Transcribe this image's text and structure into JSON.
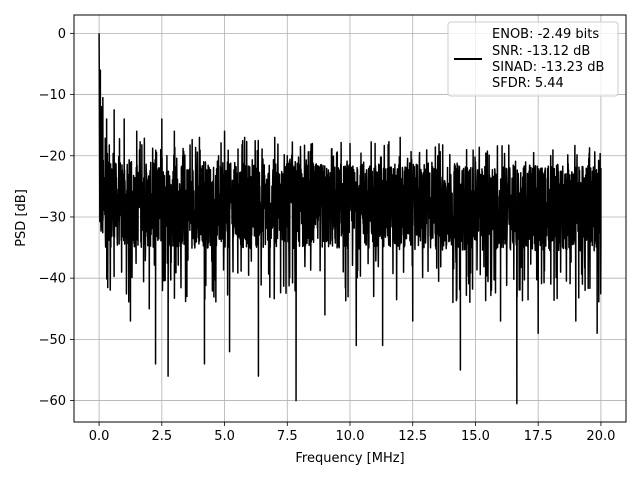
{
  "chart_data": {
    "type": "line",
    "title": "",
    "xlabel": "Frequency [MHz]",
    "ylabel": "PSD [dB]",
    "xlim": [
      -1.0,
      21.0
    ],
    "ylim": [
      -63.5,
      3.0
    ],
    "x_ticks": [
      0.0,
      2.5,
      5.0,
      7.5,
      10.0,
      12.5,
      15.0,
      17.5,
      20.0
    ],
    "x_tick_labels": [
      "0.0",
      "2.5",
      "5.0",
      "7.5",
      "10.0",
      "12.5",
      "15.0",
      "17.5",
      "20.0"
    ],
    "y_ticks": [
      0,
      -10,
      -20,
      -30,
      -40,
      -50,
      -60
    ],
    "y_tick_labels": [
      "0",
      "−10",
      "−20",
      "−30",
      "−40",
      "−50",
      "−60"
    ],
    "grid": true,
    "legend_position": "top-right",
    "legend_lines": [
      "ENOB: -2.49 bits",
      "SNR: -13.12 dB",
      "SINAD: -13.23 dB",
      "SFDR: 5.44"
    ],
    "series": [
      {
        "color": "#000000",
        "noise_floor_db": -29,
        "x": [
          0.0,
          0.05,
          0.1,
          0.15,
          0.2,
          0.3,
          0.45,
          0.6,
          0.8,
          1.0,
          1.25,
          1.5,
          2.0,
          2.25,
          2.5,
          2.75,
          3.0,
          3.5,
          4.0,
          4.2,
          5.0,
          5.2,
          5.8,
          6.35,
          7.0,
          7.5,
          7.85,
          8.5,
          9.0,
          10.0,
          10.25,
          11.0,
          11.3,
          12.0,
          12.5,
          13.5,
          14.4,
          15.0,
          16.0,
          16.65,
          17.0,
          17.5,
          18.0,
          19.0,
          19.85,
          20.0
        ],
        "y": [
          0.0,
          -6.0,
          -12.0,
          -10.5,
          -28.0,
          -14.0,
          -38.5,
          -12.5,
          -32.0,
          -14.0,
          -47.0,
          -16.0,
          -45.0,
          -54.0,
          -14.0,
          -56.0,
          -16.0,
          -43.0,
          -17.0,
          -54.0,
          -16.0,
          -52.0,
          -17.0,
          -56.0,
          -17.0,
          -20.0,
          -60.0,
          -18.0,
          -46.0,
          -18.0,
          -51.0,
          -18.0,
          -51.0,
          -17.0,
          -47.0,
          -20.0,
          -55.0,
          -21.0,
          -47.0,
          -60.5,
          -21.0,
          -49.0,
          -20.0,
          -47.0,
          -49.0,
          -22.0
        ]
      }
    ]
  }
}
